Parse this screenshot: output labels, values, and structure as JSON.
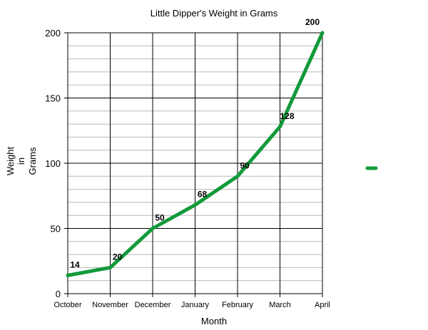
{
  "chart_data": {
    "type": "line",
    "title": "Little Dipper's Weight in Grams",
    "xlabel": "Month",
    "ylabel_lines": [
      "Weight",
      "in",
      "Grams"
    ],
    "categories": [
      "October",
      "November",
      "December",
      "January",
      "February",
      "March",
      "April"
    ],
    "series": [
      {
        "values": [
          14,
          20,
          50,
          68,
          90,
          128,
          200
        ],
        "color": "#129a3a"
      }
    ],
    "data_labels": [
      "14",
      "20",
      "50",
      "68",
      "90",
      "128",
      "200"
    ],
    "ylim": [
      0,
      200
    ],
    "yticks": [
      0,
      50,
      100,
      150,
      200
    ],
    "minor_step": 10,
    "grid": true,
    "legend": {
      "placement": "right",
      "entries": [
        {
          "color": "#129a3a"
        }
      ]
    }
  }
}
